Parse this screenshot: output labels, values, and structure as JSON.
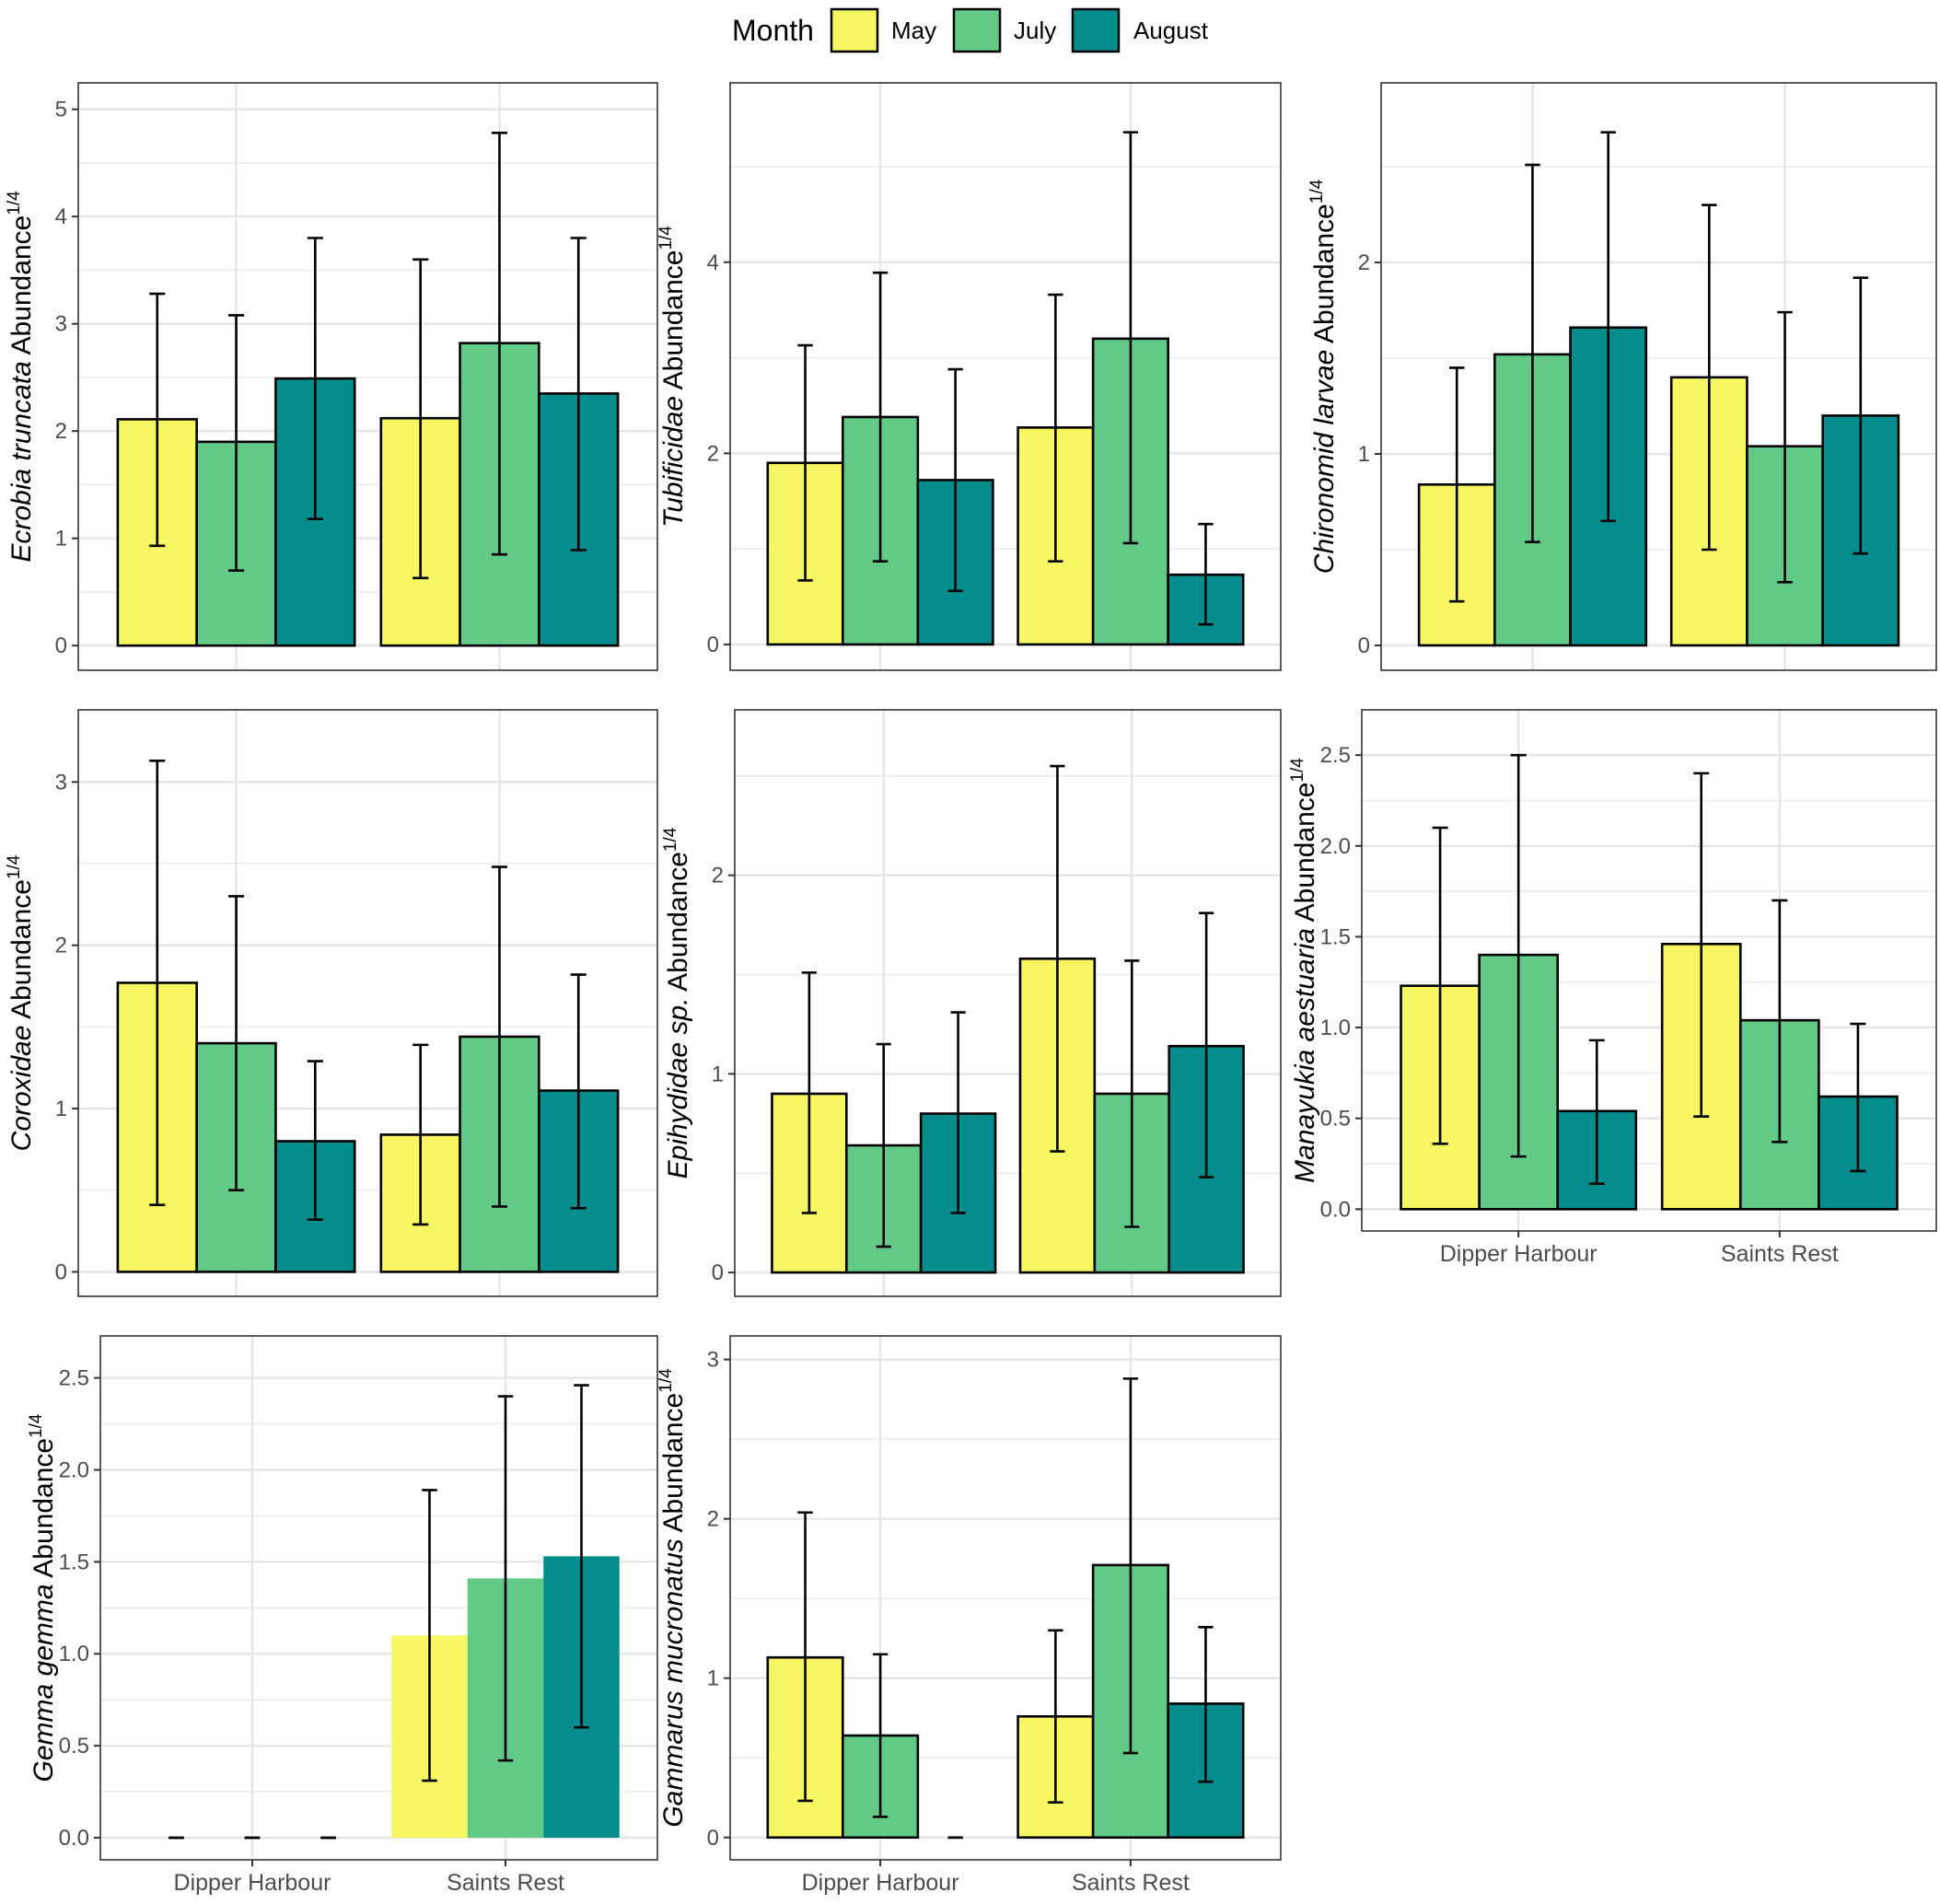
{
  "legend": {
    "title": "Month",
    "entries": [
      {
        "label": "May",
        "color": "#F7F764"
      },
      {
        "label": "July",
        "color": "#63C987"
      },
      {
        "label": "August",
        "color": "#058C8C"
      }
    ]
  },
  "chart_data": [
    {
      "type": "bar",
      "ylabel": {
        "species": "Ecrobia truncata",
        "suffix": " Abundance",
        "superscript": "1/4"
      },
      "categories": [
        "Dipper Harbour",
        "Saints Rest"
      ],
      "show_category_labels": false,
      "ylim": [
        -0.23,
        5.0
      ],
      "yticks": [
        "0",
        "1",
        "2",
        "3",
        "4",
        "5"
      ],
      "series": [
        {
          "name": "May",
          "values": [
            2.11,
            2.12
          ],
          "err_low": [
            0.93,
            0.63
          ],
          "err_high": [
            3.28,
            3.6
          ]
        },
        {
          "name": "July",
          "values": [
            1.9,
            2.82
          ],
          "err_low": [
            0.7,
            0.85
          ],
          "err_high": [
            3.08,
            4.78
          ]
        },
        {
          "name": "August",
          "values": [
            2.49,
            2.35
          ],
          "err_low": [
            1.18,
            0.89
          ],
          "err_high": [
            3.8,
            3.8
          ]
        }
      ]
    },
    {
      "type": "bar",
      "ylabel": {
        "species": "Tubificidae",
        "suffix": " Abundance",
        "superscript": "1/4"
      },
      "categories": [
        "Dipper Harbour",
        "Saints Rest"
      ],
      "show_category_labels": false,
      "ylim": [
        -0.27,
        5.6
      ],
      "yticks": [
        "0",
        "2",
        "4"
      ],
      "series": [
        {
          "name": "May",
          "values": [
            1.9,
            2.27
          ],
          "err_low": [
            0.67,
            0.87
          ],
          "err_high": [
            3.13,
            3.66
          ]
        },
        {
          "name": "July",
          "values": [
            2.38,
            3.2
          ],
          "err_low": [
            0.87,
            1.06
          ],
          "err_high": [
            3.89,
            5.36
          ]
        },
        {
          "name": "August",
          "values": [
            1.72,
            0.73
          ],
          "err_low": [
            0.56,
            0.21
          ],
          "err_high": [
            2.88,
            1.26
          ]
        }
      ]
    },
    {
      "type": "bar",
      "ylabel": {
        "species": "Chironomid larvae",
        "suffix": " Abundance",
        "superscript": "1/4"
      },
      "categories": [
        "Dipper Harbour",
        "Saints Rest"
      ],
      "show_category_labels": false,
      "ylim": [
        -0.13,
        2.8
      ],
      "yticks": [
        "0",
        "1",
        "2"
      ],
      "series": [
        {
          "name": "May",
          "values": [
            0.84,
            1.4
          ],
          "err_low": [
            0.23,
            0.5
          ],
          "err_high": [
            1.45,
            2.3
          ]
        },
        {
          "name": "July",
          "values": [
            1.52,
            1.04
          ],
          "err_low": [
            0.54,
            0.33
          ],
          "err_high": [
            2.51,
            1.74
          ]
        },
        {
          "name": "August",
          "values": [
            1.66,
            1.2
          ],
          "err_low": [
            0.65,
            0.48
          ],
          "err_high": [
            2.68,
            1.92
          ]
        }
      ]
    },
    {
      "type": "bar",
      "ylabel": {
        "species": "Coroxidae",
        "suffix": " Abundance",
        "superscript": "1/4"
      },
      "categories": [
        "Dipper Harbour",
        "Saints Rest"
      ],
      "show_category_labels": false,
      "ylim": [
        -0.15,
        3.28
      ],
      "yticks": [
        "0",
        "1",
        "2",
        "3"
      ],
      "series": [
        {
          "name": "May",
          "values": [
            1.77,
            0.84
          ],
          "err_low": [
            0.41,
            0.29
          ],
          "err_high": [
            3.13,
            1.39
          ]
        },
        {
          "name": "July",
          "values": [
            1.4,
            1.44
          ],
          "err_low": [
            0.5,
            0.4
          ],
          "err_high": [
            2.3,
            2.48
          ]
        },
        {
          "name": "August",
          "values": [
            0.8,
            1.11
          ],
          "err_low": [
            0.32,
            0.39
          ],
          "err_high": [
            1.29,
            1.82
          ]
        }
      ]
    },
    {
      "type": "bar",
      "ylabel": {
        "species": "Epihydidae sp.",
        "suffix": " Abundance",
        "superscript": "1/4"
      },
      "categories": [
        "Dipper Harbour",
        "Saints Rest"
      ],
      "show_category_labels": false,
      "ylim": [
        -0.12,
        2.7
      ],
      "yticks": [
        "0",
        "1",
        "2"
      ],
      "series": [
        {
          "name": "May",
          "values": [
            0.9,
            1.58
          ],
          "err_low": [
            0.3,
            0.61
          ],
          "err_high": [
            1.51,
            2.55
          ]
        },
        {
          "name": "July",
          "values": [
            0.64,
            0.9
          ],
          "err_low": [
            0.13,
            0.23
          ],
          "err_high": [
            1.15,
            1.57
          ]
        },
        {
          "name": "August",
          "values": [
            0.8,
            1.14
          ],
          "err_low": [
            0.3,
            0.48
          ],
          "err_high": [
            1.31,
            1.81
          ]
        }
      ]
    },
    {
      "type": "bar",
      "ylabel": {
        "species": "Manayukia aestuaria",
        "suffix": " Abundance",
        "superscript": "1/4"
      },
      "categories": [
        "Dipper Harbour",
        "Saints Rest"
      ],
      "show_category_labels": true,
      "ylim": [
        -0.12,
        2.62
      ],
      "yticks": [
        "0.0",
        "0.5",
        "1.0",
        "1.5",
        "2.0",
        "2.5"
      ],
      "series": [
        {
          "name": "May",
          "values": [
            1.23,
            1.46
          ],
          "err_low": [
            0.36,
            0.51
          ],
          "err_high": [
            2.1,
            2.4
          ]
        },
        {
          "name": "July",
          "values": [
            1.4,
            1.04
          ],
          "err_low": [
            0.29,
            0.37
          ],
          "err_high": [
            2.5,
            1.7
          ]
        },
        {
          "name": "August",
          "values": [
            0.54,
            0.62
          ],
          "err_low": [
            0.14,
            0.21
          ],
          "err_high": [
            0.93,
            1.02
          ]
        }
      ]
    },
    {
      "type": "bar",
      "ylabel": {
        "species": "Gemma gemma",
        "suffix": " Abundance",
        "superscript": "1/4"
      },
      "categories": [
        "Dipper Harbour",
        "Saints Rest"
      ],
      "show_category_labels": true,
      "no_outline": true,
      "ylim": [
        -0.12,
        2.6
      ],
      "yticks": [
        "0.0",
        "0.5",
        "1.0",
        "1.5",
        "2.0",
        "2.5"
      ],
      "series": [
        {
          "name": "May",
          "values": [
            0.0,
            1.1
          ],
          "err_low": [
            0.0,
            0.31
          ],
          "err_high": [
            0.0,
            1.89
          ]
        },
        {
          "name": "July",
          "values": [
            0.0,
            1.41
          ],
          "err_low": [
            0.0,
            0.42
          ],
          "err_high": [
            0.0,
            2.4
          ]
        },
        {
          "name": "August",
          "values": [
            0.0,
            1.53
          ],
          "err_low": [
            0.0,
            0.6
          ],
          "err_high": [
            0.0,
            2.46
          ]
        }
      ]
    },
    {
      "type": "bar",
      "ylabel": {
        "species": "Gammarus mucronatus",
        "suffix": " Abundance",
        "superscript": "1/4"
      },
      "categories": [
        "Dipper Harbour",
        "Saints Rest"
      ],
      "show_category_labels": true,
      "ylim": [
        -0.14,
        3.0
      ],
      "yticks": [
        "0",
        "1",
        "2",
        "3"
      ],
      "series": [
        {
          "name": "May",
          "values": [
            1.13,
            0.76
          ],
          "err_low": [
            0.23,
            0.22
          ],
          "err_high": [
            2.04,
            1.3
          ]
        },
        {
          "name": "July",
          "values": [
            0.64,
            1.71
          ],
          "err_low": [
            0.13,
            0.53
          ],
          "err_high": [
            1.15,
            2.88
          ]
        },
        {
          "name": "August",
          "values": [
            0.0,
            0.84
          ],
          "err_low": [
            0.0,
            0.35
          ],
          "err_high": [
            0.0,
            1.32
          ]
        }
      ]
    }
  ]
}
